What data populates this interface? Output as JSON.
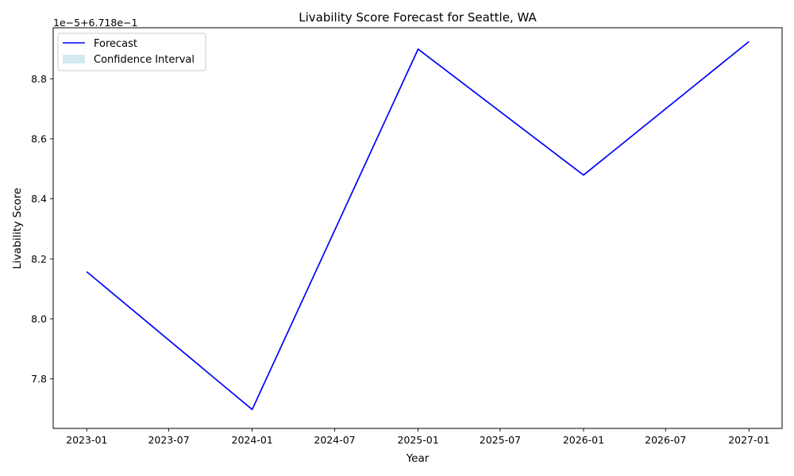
{
  "chart_data": {
    "type": "line",
    "title": "Livability Score Forecast for Seattle, WA",
    "xlabel": "Year",
    "ylabel": "Livability Score",
    "axis_offset_text": "1e−5+6.718e−1",
    "x_tick_labels": [
      "2023-01",
      "2023-07",
      "2024-01",
      "2024-07",
      "2025-01",
      "2025-07",
      "2026-01",
      "2026-07",
      "2027-01"
    ],
    "y_tick_labels": [
      "7.8",
      "8.0",
      "8.2",
      "8.4",
      "8.6",
      "8.8"
    ],
    "y_ticks_scaled": [
      7.8,
      8.0,
      8.2,
      8.4,
      8.6,
      8.8
    ],
    "x_range": [
      "2022-10-19",
      "2027-03-15"
    ],
    "y_range_scaled": [
      7.635,
      8.97
    ],
    "grid": false,
    "legend": "top-left",
    "series": [
      {
        "name": "Forecast",
        "color": "#0000ff",
        "x": [
          "2023-01-01",
          "2024-01-01",
          "2025-01-01",
          "2026-01-01",
          "2027-01-01"
        ],
        "y_scaled": [
          8.157,
          7.698,
          8.899,
          8.479,
          8.924
        ]
      },
      {
        "name": "Confidence Interval",
        "color": "#add8e6",
        "style": "band"
      }
    ]
  }
}
